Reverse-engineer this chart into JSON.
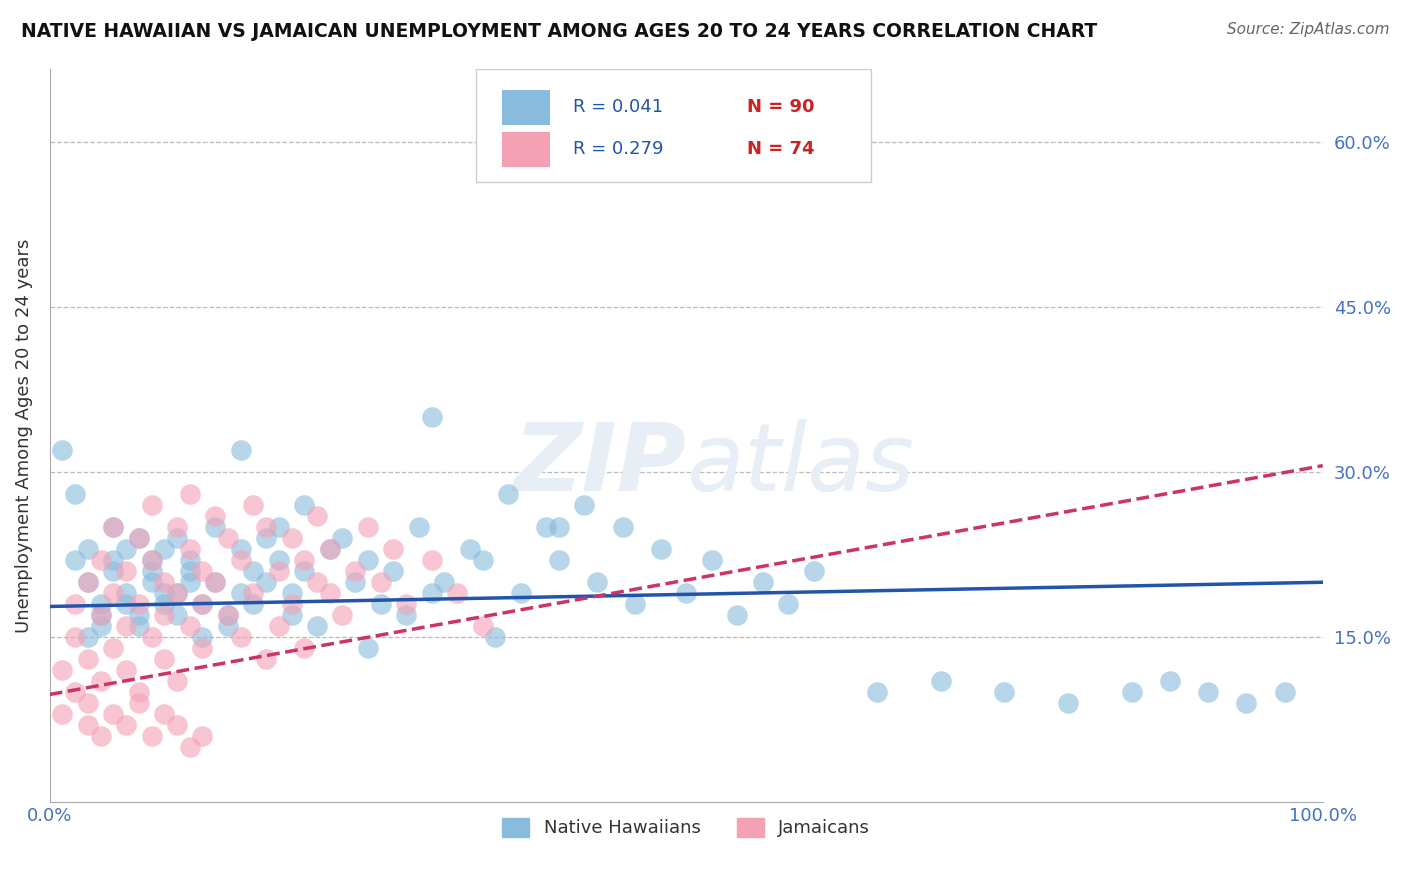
{
  "title": "NATIVE HAWAIIAN VS JAMAICAN UNEMPLOYMENT AMONG AGES 20 TO 24 YEARS CORRELATION CHART",
  "source": "Source: ZipAtlas.com",
  "ylabel": "Unemployment Among Ages 20 to 24 years",
  "xlim": [
    0,
    1.0
  ],
  "ylim": [
    0,
    0.667
  ],
  "ytick_positions": [
    0.15,
    0.3,
    0.45,
    0.6
  ],
  "ytick_labels": [
    "15.0%",
    "30.0%",
    "45.0%",
    "60.0%"
  ],
  "legend_r1": "R = 0.041",
  "legend_n1": "N = 90",
  "legend_r2": "R = 0.279",
  "legend_n2": "N = 74",
  "legend_label1": "Native Hawaiians",
  "legend_label2": "Jamaicans",
  "blue_color": "#88bbdd",
  "pink_color": "#f4a0b5",
  "blue_line_color": "#2255aa",
  "pink_line_color": "#cc3366",
  "watermark_color": "#e8eef5",
  "blue_scatter_x": [
    0.02,
    0.03,
    0.01,
    0.04,
    0.02,
    0.03,
    0.05,
    0.04,
    0.03,
    0.06,
    0.05,
    0.04,
    0.07,
    0.06,
    0.05,
    0.08,
    0.07,
    0.06,
    0.09,
    0.08,
    0.07,
    0.1,
    0.09,
    0.08,
    0.11,
    0.1,
    0.09,
    0.12,
    0.11,
    0.1,
    0.13,
    0.12,
    0.11,
    0.14,
    0.13,
    0.15,
    0.14,
    0.16,
    0.15,
    0.17,
    0.16,
    0.18,
    0.17,
    0.19,
    0.18,
    0.2,
    0.19,
    0.22,
    0.21,
    0.24,
    0.23,
    0.26,
    0.25,
    0.28,
    0.27,
    0.3,
    0.29,
    0.33,
    0.31,
    0.36,
    0.34,
    0.39,
    0.37,
    0.42,
    0.4,
    0.45,
    0.43,
    0.48,
    0.46,
    0.52,
    0.5,
    0.56,
    0.54,
    0.6,
    0.58,
    0.65,
    0.7,
    0.75,
    0.8,
    0.85,
    0.88,
    0.91,
    0.94,
    0.97,
    0.35,
    0.25,
    0.4,
    0.2,
    0.15,
    0.3
  ],
  "blue_scatter_y": [
    0.28,
    0.2,
    0.32,
    0.18,
    0.22,
    0.15,
    0.25,
    0.17,
    0.23,
    0.19,
    0.21,
    0.16,
    0.24,
    0.18,
    0.22,
    0.2,
    0.17,
    0.23,
    0.19,
    0.21,
    0.16,
    0.24,
    0.18,
    0.22,
    0.2,
    0.17,
    0.23,
    0.15,
    0.21,
    0.19,
    0.25,
    0.18,
    0.22,
    0.17,
    0.2,
    0.23,
    0.16,
    0.21,
    0.19,
    0.24,
    0.18,
    0.22,
    0.2,
    0.17,
    0.25,
    0.21,
    0.19,
    0.23,
    0.16,
    0.2,
    0.24,
    0.18,
    0.22,
    0.17,
    0.21,
    0.19,
    0.25,
    0.23,
    0.2,
    0.28,
    0.22,
    0.25,
    0.19,
    0.27,
    0.22,
    0.25,
    0.2,
    0.23,
    0.18,
    0.22,
    0.19,
    0.2,
    0.17,
    0.21,
    0.18,
    0.1,
    0.11,
    0.1,
    0.09,
    0.1,
    0.11,
    0.1,
    0.09,
    0.1,
    0.15,
    0.14,
    0.25,
    0.27,
    0.32,
    0.35
  ],
  "pink_scatter_x": [
    0.01,
    0.01,
    0.02,
    0.02,
    0.02,
    0.03,
    0.03,
    0.03,
    0.04,
    0.04,
    0.04,
    0.05,
    0.05,
    0.05,
    0.06,
    0.06,
    0.06,
    0.07,
    0.07,
    0.07,
    0.08,
    0.08,
    0.08,
    0.09,
    0.09,
    0.09,
    0.1,
    0.1,
    0.1,
    0.11,
    0.11,
    0.11,
    0.12,
    0.12,
    0.12,
    0.13,
    0.13,
    0.14,
    0.14,
    0.15,
    0.15,
    0.16,
    0.16,
    0.17,
    0.17,
    0.18,
    0.18,
    0.19,
    0.19,
    0.2,
    0.2,
    0.21,
    0.21,
    0.22,
    0.22,
    0.23,
    0.24,
    0.25,
    0.26,
    0.27,
    0.28,
    0.3,
    0.32,
    0.34,
    0.03,
    0.04,
    0.05,
    0.06,
    0.07,
    0.08,
    0.09,
    0.1,
    0.11,
    0.12
  ],
  "pink_scatter_y": [
    0.12,
    0.08,
    0.15,
    0.1,
    0.18,
    0.13,
    0.2,
    0.09,
    0.17,
    0.22,
    0.11,
    0.19,
    0.14,
    0.25,
    0.16,
    0.21,
    0.12,
    0.24,
    0.18,
    0.1,
    0.22,
    0.15,
    0.27,
    0.2,
    0.13,
    0.17,
    0.25,
    0.19,
    0.11,
    0.23,
    0.16,
    0.28,
    0.21,
    0.14,
    0.18,
    0.26,
    0.2,
    0.24,
    0.17,
    0.22,
    0.15,
    0.27,
    0.19,
    0.25,
    0.13,
    0.21,
    0.16,
    0.24,
    0.18,
    0.22,
    0.14,
    0.2,
    0.26,
    0.19,
    0.23,
    0.17,
    0.21,
    0.25,
    0.2,
    0.23,
    0.18,
    0.22,
    0.19,
    0.16,
    0.07,
    0.06,
    0.08,
    0.07,
    0.09,
    0.06,
    0.08,
    0.07,
    0.05,
    0.06
  ],
  "blue_trendline_x": [
    0.0,
    1.0
  ],
  "blue_trendline_y": [
    0.178,
    0.2
  ],
  "pink_trendline_x": [
    0.0,
    1.0
  ],
  "pink_trendline_y": [
    0.098,
    0.306
  ]
}
